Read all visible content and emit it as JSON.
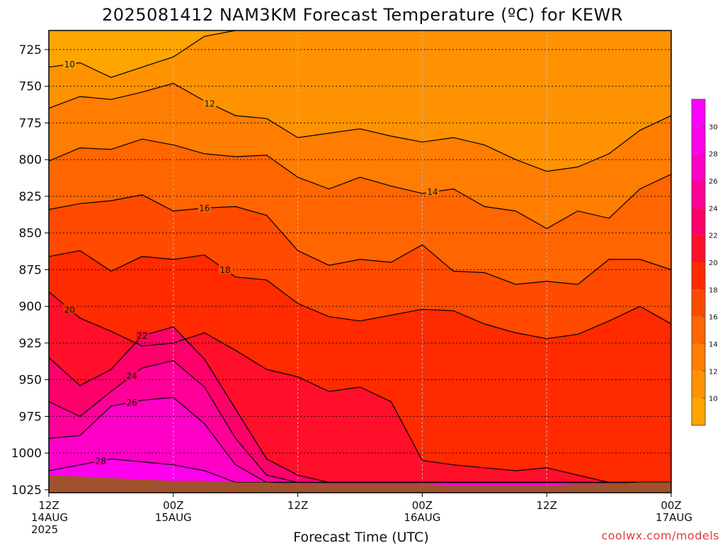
{
  "colors": {
    "bands": [
      "#ffa500",
      "#ff9200",
      "#ff7d00",
      "#ff6500",
      "#ff4a00",
      "#ff2a00",
      "#ff0f2a",
      "#ff006a",
      "#ff0098",
      "#ff00c6",
      "#ff00ee"
    ],
    "terrain": "#a0522d",
    "credit": "#e23c3c"
  },
  "chart_data": {
    "type": "heatmap",
    "title": "2025081412 NAM3KM Forecast Temperature (ºC) for KEWR",
    "xlabel": "Forecast Time (UTC)",
    "ylabel": "",
    "credit": "coolwx.com/models",
    "x_ticks": [
      {
        "hour": 0,
        "top": "12Z",
        "mid": "14AUG",
        "bot": "2025"
      },
      {
        "hour": 12,
        "top": "00Z",
        "mid": "15AUG",
        "bot": ""
      },
      {
        "hour": 24,
        "top": "12Z",
        "mid": "",
        "bot": ""
      },
      {
        "hour": 36,
        "top": "00Z",
        "mid": "16AUG",
        "bot": ""
      },
      {
        "hour": 48,
        "top": "12Z",
        "mid": "",
        "bot": ""
      },
      {
        "hour": 60,
        "top": "00Z",
        "mid": "17AUG",
        "bot": ""
      }
    ],
    "x_range_hours": [
      0,
      60
    ],
    "y_ticks": [
      725,
      750,
      775,
      800,
      825,
      850,
      875,
      900,
      925,
      950,
      975,
      1000,
      1025
    ],
    "y_range_hpa": [
      712,
      1027
    ],
    "colorbar": {
      "ticks": [
        10,
        12,
        14,
        16,
        18,
        20,
        22,
        24,
        26,
        28,
        30
      ],
      "range": [
        8,
        32
      ]
    },
    "contour_hours": [
      0,
      3,
      6,
      9,
      12,
      15,
      18,
      21,
      24,
      27,
      30,
      33,
      36,
      39,
      42,
      45,
      48,
      51,
      54,
      57,
      60
    ],
    "contours": [
      {
        "level": 10,
        "label_hour": 2,
        "pressure_hpa": [
          737,
          734,
          744,
          737,
          730,
          716,
          712,
          712,
          712,
          712,
          712,
          712,
          712,
          712,
          712,
          712,
          712,
          712,
          712,
          712,
          712
        ],
        "label": "10"
      },
      {
        "level": 12,
        "label_hour": 15.5,
        "pressure_hpa": [
          765,
          757,
          759,
          754,
          748,
          760,
          770,
          772,
          785,
          782,
          779,
          784,
          788,
          785,
          790,
          800,
          808,
          805,
          796,
          780,
          770
        ],
        "label": "12"
      },
      {
        "level": 14,
        "label_hour": 37,
        "pressure_hpa": [
          801,
          792,
          793,
          786,
          790,
          796,
          798,
          797,
          812,
          820,
          812,
          818,
          823,
          820,
          832,
          835,
          847,
          835,
          840,
          820,
          810
        ],
        "label": "14"
      },
      {
        "level": 16,
        "label_hour": 15,
        "pressure_hpa": [
          834,
          830,
          828,
          824,
          835,
          833,
          832,
          838,
          862,
          872,
          868,
          870,
          858,
          876,
          877,
          885,
          883,
          885,
          868,
          868,
          875
        ],
        "label": "16"
      },
      {
        "level": 18,
        "label_hour": 17,
        "pressure_hpa": [
          866,
          862,
          876,
          866,
          868,
          865,
          880,
          882,
          898,
          907,
          910,
          906,
          902,
          903,
          912,
          918,
          922,
          919,
          910,
          900,
          912
        ],
        "label": "18"
      },
      {
        "level": 20,
        "label_hour": 2,
        "pressure_hpa": [
          890,
          908,
          917,
          927,
          925,
          918,
          930,
          943,
          948,
          958,
          955,
          965,
          1005,
          1008,
          1010,
          1012,
          1010,
          1015,
          1020,
          1020,
          1020
        ],
        "label": "20"
      },
      {
        "level": 22,
        "label_hour": 9,
        "pressure_hpa": [
          935,
          954,
          943,
          920,
          914,
          936,
          970,
          1004,
          1015,
          1020,
          1020,
          1020,
          1020,
          1020,
          1020,
          1020,
          1020,
          1020,
          1020,
          1020,
          1020
        ],
        "label": "22"
      },
      {
        "level": 24,
        "label_hour": 8,
        "pressure_hpa": [
          965,
          975,
          958,
          942,
          937,
          955,
          990,
          1015,
          1020,
          1020,
          1020,
          1020,
          1020,
          1020,
          1020,
          1020,
          1020,
          1020,
          1020,
          1020,
          1020
        ],
        "label": "24"
      },
      {
        "level": 26,
        "label_hour": 8,
        "pressure_hpa": [
          990,
          988,
          968,
          964,
          962,
          980,
          1008,
          1020,
          1020,
          1020,
          1020,
          1020,
          1020,
          1020,
          1020,
          1020,
          1020,
          1020,
          1020,
          1020,
          1020
        ],
        "label": "26"
      },
      {
        "level": 28,
        "label_hour": 5,
        "pressure_hpa": [
          1012,
          1008,
          1004,
          1006,
          1008,
          1012,
          1020,
          1020,
          1020,
          1020,
          1020,
          1020,
          1020,
          1020,
          1020,
          1020,
          1020,
          1020,
          1020,
          1020,
          1020
        ],
        "label": "28"
      }
    ],
    "terrain_hpa": [
      1015,
      1016,
      1017,
      1018,
      1019,
      1019,
      1020,
      1020,
      1021,
      1021,
      1021,
      1021,
      1021,
      1022,
      1022,
      1022,
      1022,
      1021,
      1021,
      1020,
      1020
    ],
    "grid": true,
    "legend": "right"
  }
}
